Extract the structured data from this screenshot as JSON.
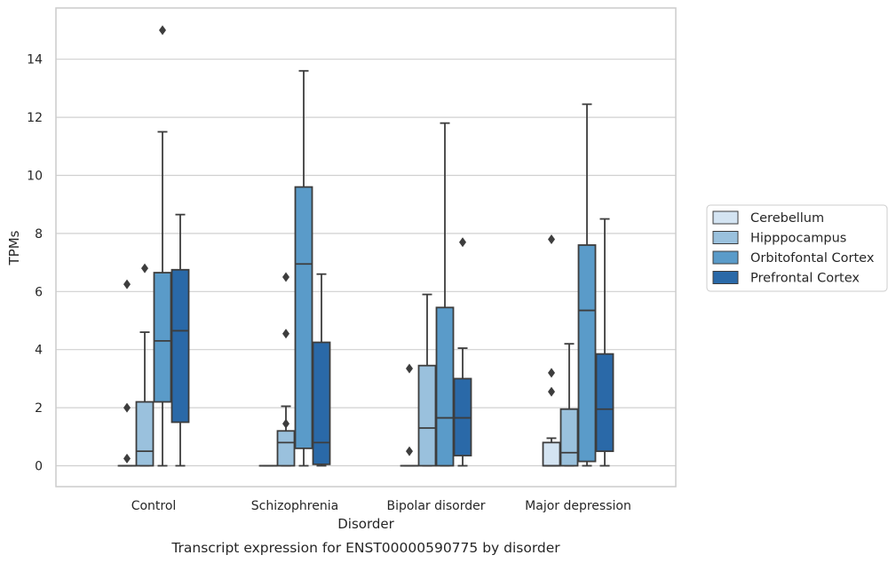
{
  "chart_data": {
    "type": "box",
    "caption": "Transcript expression for ENST00000590775 by disorder",
    "xlabel": "Disorder",
    "ylabel": "TPMs",
    "ylim": [
      -0.7,
      15.6
    ],
    "yticks": [
      0,
      2,
      4,
      6,
      8,
      10,
      12,
      14
    ],
    "grid": "horizontal",
    "legend_position": "right",
    "categories": [
      "Control",
      "Schizophrenia",
      "Bipolar disorder",
      "Major depression"
    ],
    "series": [
      {
        "name": "Cerebellum",
        "color": "#d4e4f2",
        "boxes": [
          {
            "whislo": 0,
            "q1": 0,
            "med": 0,
            "q3": 0,
            "whishi": 0,
            "fliers": [
              0.25,
              2.0,
              6.25
            ]
          },
          {
            "whislo": 0,
            "q1": 0,
            "med": 0,
            "q3": 0,
            "whishi": 0,
            "fliers": []
          },
          {
            "whislo": 0,
            "q1": 0,
            "med": 0,
            "q3": 0,
            "whishi": 0,
            "fliers": [
              0.5,
              3.35
            ]
          },
          {
            "whislo": 0,
            "q1": 0,
            "med": 0,
            "q3": 0.8,
            "whishi": 0.95,
            "fliers": [
              2.55,
              3.2,
              7.8
            ]
          }
        ]
      },
      {
        "name": "Hipppocampus",
        "color": "#9ac1dd",
        "boxes": [
          {
            "whislo": 0,
            "q1": 0,
            "med": 0.5,
            "q3": 2.2,
            "whishi": 4.6,
            "fliers": [
              6.8
            ]
          },
          {
            "whislo": 0,
            "q1": 0,
            "med": 0.8,
            "q3": 1.2,
            "whishi": 2.05,
            "fliers": [
              1.45,
              4.55,
              6.5
            ]
          },
          {
            "whislo": 0,
            "q1": 0,
            "med": 1.3,
            "q3": 3.45,
            "whishi": 5.9,
            "fliers": []
          },
          {
            "whislo": 0,
            "q1": 0,
            "med": 0.45,
            "q3": 1.95,
            "whishi": 4.2,
            "fliers": []
          }
        ]
      },
      {
        "name": "Orbitofontal Cortex",
        "color": "#5a9bc9",
        "boxes": [
          {
            "whislo": 0,
            "q1": 2.2,
            "med": 4.3,
            "q3": 6.65,
            "whishi": 11.5,
            "fliers": [
              15.0
            ]
          },
          {
            "whislo": 0,
            "q1": 0.6,
            "med": 6.95,
            "q3": 9.6,
            "whishi": 13.6,
            "fliers": []
          },
          {
            "whislo": 0,
            "q1": 0,
            "med": 1.65,
            "q3": 5.45,
            "whishi": 11.8,
            "fliers": []
          },
          {
            "whislo": 0,
            "q1": 0.15,
            "med": 5.35,
            "q3": 7.6,
            "whishi": 12.45,
            "fliers": []
          }
        ]
      },
      {
        "name": "Prefrontal Cortex",
        "color": "#2a69a8",
        "boxes": [
          {
            "whislo": 0,
            "q1": 1.5,
            "med": 4.65,
            "q3": 6.75,
            "whishi": 8.65,
            "fliers": []
          },
          {
            "whislo": 0,
            "q1": 0.05,
            "med": 0.8,
            "q3": 4.25,
            "whishi": 6.6,
            "fliers": []
          },
          {
            "whislo": 0,
            "q1": 0.35,
            "med": 1.65,
            "q3": 3.0,
            "whishi": 4.05,
            "fliers": [
              7.7
            ]
          },
          {
            "whislo": 0,
            "q1": 0.5,
            "med": 1.95,
            "q3": 3.85,
            "whishi": 8.5,
            "fliers": []
          }
        ]
      }
    ]
  }
}
